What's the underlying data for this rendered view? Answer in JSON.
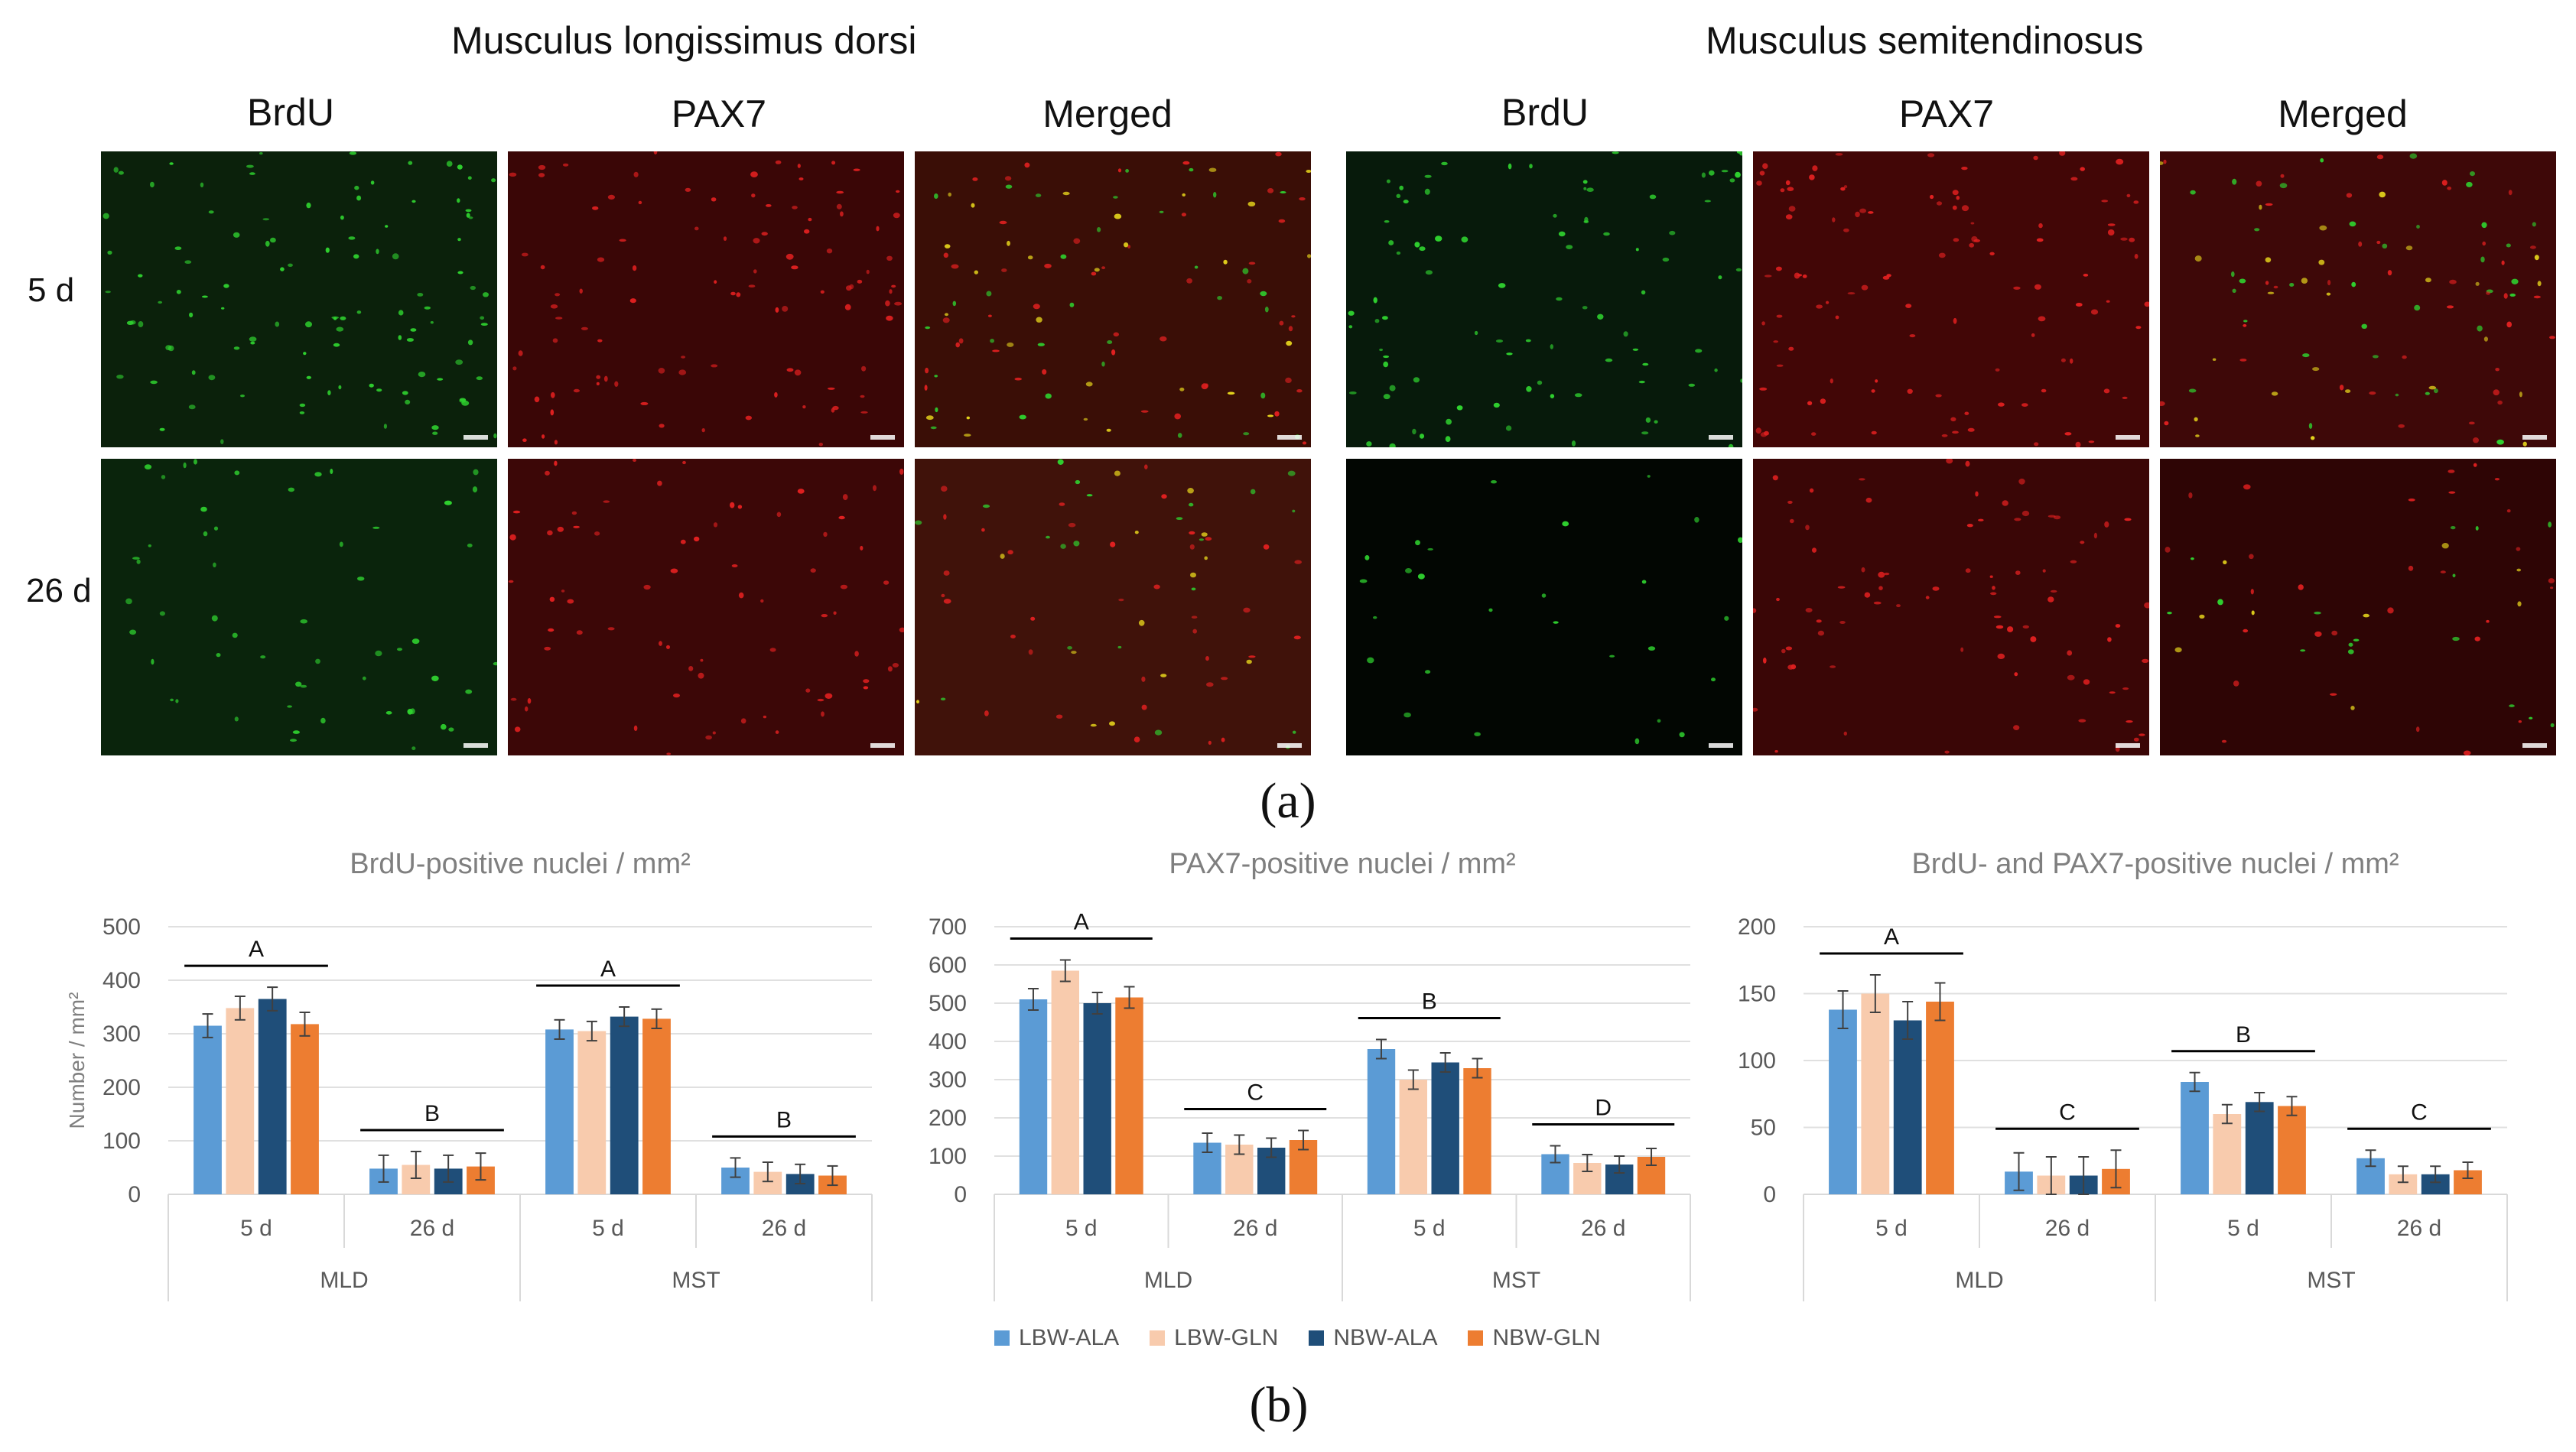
{
  "panel_a": {
    "muscle_titles": [
      "Musculus longissimus dorsi",
      "Musculus semitendinosus"
    ],
    "column_labels": [
      "BrdU",
      "PAX7",
      "Merged",
      "BrdU",
      "PAX7",
      "Merged"
    ],
    "row_labels": [
      "5 d",
      "26 d"
    ],
    "stain_colors": {
      "BrdU": "#2fd12f",
      "PAX7": "#e02020",
      "Merged": "#e3d21c"
    },
    "label": "(a)"
  },
  "panel_b": {
    "label": "(b)"
  },
  "legend": [
    {
      "name": "LBW-ALA",
      "color": "#5b9bd5"
    },
    {
      "name": "LBW-GLN",
      "color": "#f8cbad"
    },
    {
      "name": "NBW-ALA",
      "color": "#1f4e79"
    },
    {
      "name": "NBW-GLN",
      "color": "#ed7d31"
    }
  ],
  "chart_data": [
    {
      "type": "bar",
      "title": "BrdU-positive nuclei / mm²",
      "ylabel": "Number / mm²",
      "xlabel": "",
      "ylim": [
        0,
        500
      ],
      "yticks": [
        0,
        100,
        200,
        300,
        400,
        500
      ],
      "grid": true,
      "legend_position": "bottom",
      "group_labels": [
        "MLD",
        "MST"
      ],
      "categories": [
        "5 d",
        "26 d",
        "5 d",
        "26 d"
      ],
      "series": [
        {
          "name": "LBW-ALA",
          "values": [
            315,
            48,
            308,
            50
          ],
          "errors": [
            22,
            25,
            18,
            18
          ]
        },
        {
          "name": "LBW-GLN",
          "values": [
            348,
            55,
            305,
            42
          ],
          "errors": [
            22,
            25,
            18,
            18
          ]
        },
        {
          "name": "NBW-ALA",
          "values": [
            365,
            48,
            332,
            38
          ],
          "errors": [
            22,
            25,
            18,
            18
          ]
        },
        {
          "name": "NBW-GLN",
          "values": [
            318,
            52,
            328,
            35
          ],
          "errors": [
            22,
            25,
            18,
            18
          ]
        }
      ],
      "annotations": [
        "A",
        "B",
        "A",
        "B"
      ]
    },
    {
      "type": "bar",
      "title": "PAX7-positive nuclei / mm²",
      "ylabel": "",
      "xlabel": "",
      "ylim": [
        0,
        700
      ],
      "yticks": [
        0,
        100,
        200,
        300,
        400,
        500,
        600,
        700
      ],
      "grid": true,
      "legend_position": "bottom",
      "group_labels": [
        "MLD",
        "MST"
      ],
      "categories": [
        "5 d",
        "26 d",
        "5 d",
        "26 d"
      ],
      "series": [
        {
          "name": "LBW-ALA",
          "values": [
            510,
            135,
            380,
            105
          ],
          "errors": [
            28,
            25,
            25,
            22
          ]
        },
        {
          "name": "LBW-GLN",
          "values": [
            585,
            130,
            300,
            82
          ],
          "errors": [
            28,
            25,
            25,
            22
          ]
        },
        {
          "name": "NBW-ALA",
          "values": [
            500,
            122,
            345,
            78
          ],
          "errors": [
            28,
            25,
            25,
            22
          ]
        },
        {
          "name": "NBW-GLN",
          "values": [
            515,
            142,
            330,
            98
          ],
          "errors": [
            28,
            25,
            25,
            22
          ]
        }
      ],
      "annotations": [
        "A",
        "C",
        "B",
        "D"
      ]
    },
    {
      "type": "bar",
      "title": "BrdU- and PAX7-positive nuclei / mm²",
      "ylabel": "",
      "xlabel": "",
      "ylim": [
        0,
        200
      ],
      "yticks": [
        0,
        50,
        100,
        150,
        200
      ],
      "grid": true,
      "legend_position": "bottom",
      "group_labels": [
        "MLD",
        "MST"
      ],
      "categories": [
        "5 d",
        "26 d",
        "5 d",
        "26 d"
      ],
      "series": [
        {
          "name": "LBW-ALA",
          "values": [
            138,
            17,
            84,
            27
          ],
          "errors": [
            14,
            14,
            7,
            6
          ]
        },
        {
          "name": "LBW-GLN",
          "values": [
            150,
            14,
            60,
            15
          ],
          "errors": [
            14,
            14,
            7,
            6
          ]
        },
        {
          "name": "NBW-ALA",
          "values": [
            130,
            14,
            69,
            15
          ],
          "errors": [
            14,
            14,
            7,
            6
          ]
        },
        {
          "name": "NBW-GLN",
          "values": [
            144,
            19,
            66,
            18
          ],
          "errors": [
            14,
            14,
            7,
            6
          ]
        }
      ],
      "annotations": [
        "A",
        "C",
        "B",
        "C"
      ]
    }
  ]
}
